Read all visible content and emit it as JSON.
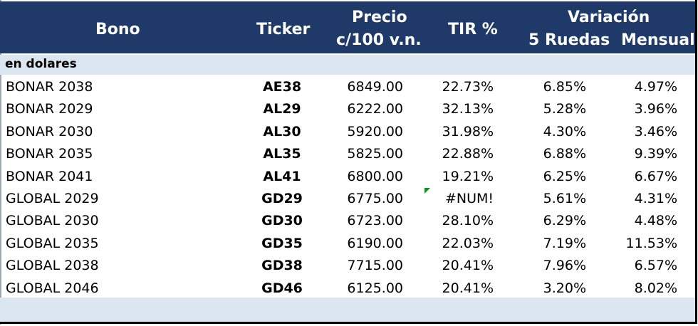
{
  "header": {
    "bono": "Bono",
    "ticker": "Ticker",
    "precio_line1": "Precio",
    "precio_line2": "c/100 v.n.",
    "tir": "TIR %",
    "variacion": "Variación",
    "ruedas": "5 Ruedas",
    "mensual": "Mensual"
  },
  "section_label": "en dolares",
  "rows": [
    {
      "bono": "BONAR 2038",
      "ticker": "AE38",
      "precio": "6849.00",
      "tir": "22.73%",
      "ruedas": "6.85%",
      "mensual": "4.97%"
    },
    {
      "bono": "BONAR 2029",
      "ticker": "AL29",
      "precio": "6222.00",
      "tir": "32.13%",
      "ruedas": "5.28%",
      "mensual": "3.96%"
    },
    {
      "bono": "BONAR 2030",
      "ticker": "AL30",
      "precio": "5920.00",
      "tir": "31.98%",
      "ruedas": "4.30%",
      "mensual": "3.46%"
    },
    {
      "bono": "BONAR 2035",
      "ticker": "AL35",
      "precio": "5825.00",
      "tir": "22.88%",
      "ruedas": "6.88%",
      "mensual": "9.39%"
    },
    {
      "bono": "BONAR 2041",
      "ticker": "AL41",
      "precio": "6800.00",
      "tir": "19.21%",
      "ruedas": "6.25%",
      "mensual": "6.67%"
    },
    {
      "bono": "GLOBAL 2029",
      "ticker": "GD29",
      "precio": "6775.00",
      "tir": "#NUM!",
      "ruedas": "5.61%",
      "mensual": "4.31%"
    },
    {
      "bono": "GLOBAL 2030",
      "ticker": "GD30",
      "precio": "6723.00",
      "tir": "28.10%",
      "ruedas": "6.29%",
      "mensual": "4.48%"
    },
    {
      "bono": "GLOBAL 2035",
      "ticker": "GD35",
      "precio": "6190.00",
      "tir": "22.03%",
      "ruedas": "7.19%",
      "mensual": "11.53%"
    },
    {
      "bono": "GLOBAL 2038",
      "ticker": "GD38",
      "precio": "7715.00",
      "tir": "20.41%",
      "ruedas": "7.96%",
      "mensual": "6.57%"
    },
    {
      "bono": "GLOBAL 2046",
      "ticker": "GD46",
      "precio": "6125.00",
      "tir": "20.41%",
      "ruedas": "3.20%",
      "mensual": "8.02%"
    }
  ],
  "colors": {
    "header_bg": "#1f3a68",
    "section_bg": "#dce6f1",
    "error_indicator": "#1f8a2c"
  }
}
